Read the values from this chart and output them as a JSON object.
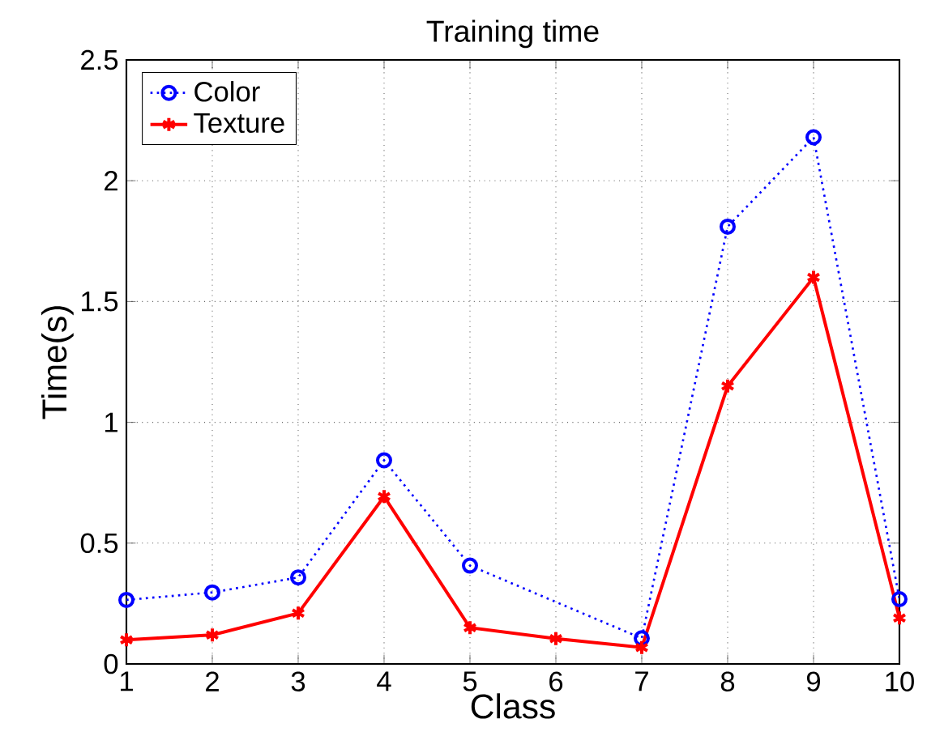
{
  "chart_data": {
    "type": "line",
    "title": "Training time",
    "xlabel": "Class",
    "ylabel": "Time(s)",
    "x": [
      1,
      2,
      3,
      4,
      5,
      6,
      7,
      8,
      9,
      10
    ],
    "series": [
      {
        "name": "Color",
        "color": "#0000ff",
        "marker": "circle",
        "line_style": "dotted",
        "values": [
          0.265,
          0.296,
          0.358,
          0.843,
          0.407,
          null,
          0.106,
          1.81,
          2.18,
          0.268
        ]
      },
      {
        "name": "Texture",
        "color": "#ff0000",
        "marker": "cross",
        "line_style": "solid",
        "values": [
          0.1,
          0.12,
          0.21,
          0.693,
          0.15,
          0.105,
          0.068,
          1.15,
          1.6,
          0.19
        ]
      }
    ],
    "xlim": [
      1,
      10
    ],
    "ylim": [
      0,
      2.5
    ],
    "xticks": [
      1,
      2,
      3,
      4,
      5,
      6,
      7,
      8,
      9,
      10
    ],
    "yticks": [
      0,
      0.5,
      1,
      1.5,
      2,
      2.5
    ],
    "grid": true,
    "legend": "top left"
  }
}
